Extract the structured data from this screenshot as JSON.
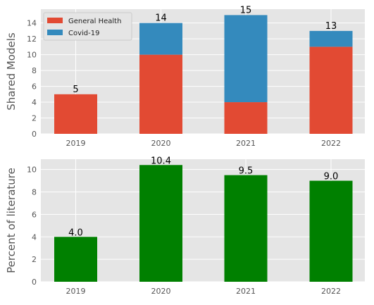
{
  "chart_data": [
    {
      "type": "bar",
      "stacked": true,
      "categories": [
        "2019",
        "2020",
        "2021",
        "2022"
      ],
      "series": [
        {
          "name": "General Health",
          "values": [
            5,
            10,
            4,
            11
          ],
          "color": "#E24A33"
        },
        {
          "name": "Covid-19",
          "values": [
            0,
            4,
            11,
            2
          ],
          "color": "#348ABD"
        }
      ],
      "totals": [
        "5",
        "14",
        "15",
        "13"
      ],
      "ylabel": "Shared Models",
      "ylim": [
        0,
        15.75
      ],
      "yticks": [
        0,
        2,
        4,
        6,
        8,
        10,
        12,
        14
      ],
      "ytick_labels": [
        "0",
        "2",
        "4",
        "6",
        "8",
        "10",
        "12",
        "14"
      ],
      "grid": true,
      "legend_position": "top-left",
      "background": "#E5E5E5"
    },
    {
      "type": "bar",
      "categories": [
        "2019",
        "2020",
        "2021",
        "2022"
      ],
      "values": [
        4.0,
        10.4,
        9.5,
        9.0
      ],
      "value_labels": [
        "4.0",
        "10.4",
        "9.5",
        "9.0"
      ],
      "color": "#008000",
      "ylabel": "Percent of literature",
      "ylim": [
        0,
        10.92
      ],
      "yticks": [
        0,
        2,
        4,
        6,
        8,
        10
      ],
      "ytick_labels": [
        "0",
        "2",
        "4",
        "6",
        "8",
        "10"
      ],
      "grid": true,
      "background": "#E5E5E5"
    }
  ]
}
